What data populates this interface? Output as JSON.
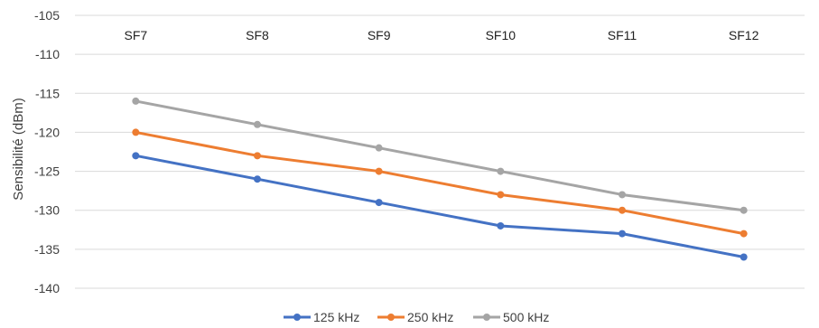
{
  "chart_data": {
    "type": "line",
    "title": "",
    "xlabel": "",
    "ylabel": "Sensibilité (dBm)",
    "categories": [
      "SF7",
      "SF8",
      "SF9",
      "SF10",
      "SF11",
      "SF12"
    ],
    "ylim": [
      -140,
      -105
    ],
    "yticks": [
      -105,
      -110,
      -115,
      -120,
      -125,
      -130,
      -135,
      -140
    ],
    "y_tick_labels": [
      "-105",
      "-110",
      "-115",
      "-120",
      "-125",
      "-130",
      "-135",
      "-140"
    ],
    "grid": true,
    "x_axis_position": "top",
    "legend_position": "bottom",
    "series": [
      {
        "name": "125 kHz",
        "color": "#4472c4",
        "values": [
          -123,
          -126,
          -129,
          -132,
          -133,
          -136
        ]
      },
      {
        "name": "250 kHz",
        "color": "#ed7d31",
        "values": [
          -120,
          -123,
          -125,
          -128,
          -130,
          -133
        ]
      },
      {
        "name": "500 kHz",
        "color": "#a5a5a5",
        "values": [
          -116,
          -119,
          -122,
          -125,
          -128,
          -130
        ]
      }
    ]
  }
}
